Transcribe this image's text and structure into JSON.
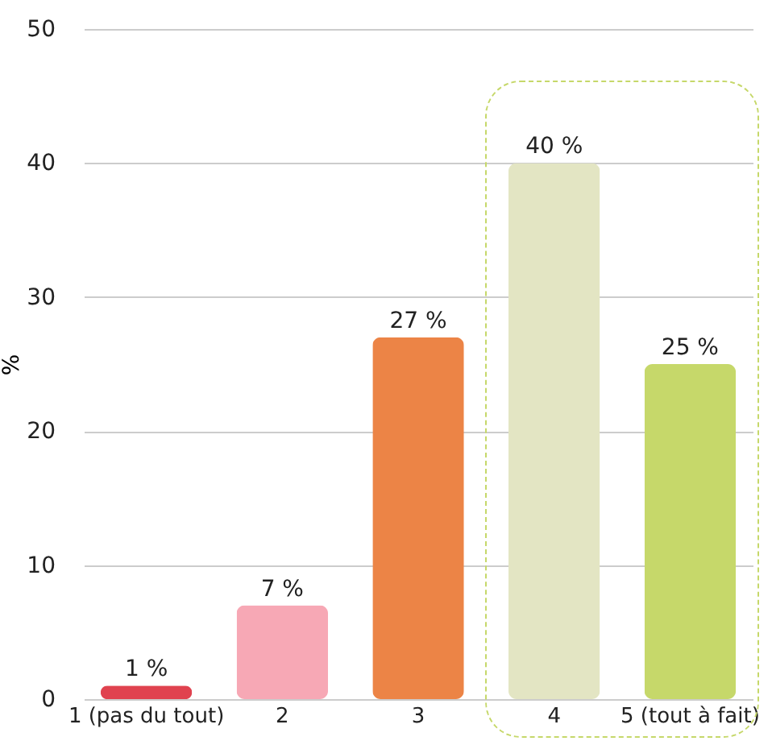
{
  "chart_data": {
    "type": "bar",
    "ylabel": "%",
    "categories": [
      "1 (pas du tout)",
      "2",
      "3",
      "4",
      "5 (tout à fait)"
    ],
    "values": [
      1,
      7,
      27,
      40,
      25
    ],
    "colors": [
      "#e0424f",
      "#f7a8b5",
      "#ec8446",
      "#e3e5c3",
      "#c6d86a"
    ],
    "value_labels": [
      "1 %",
      "7 %",
      "27 %",
      "40 %",
      "25 %"
    ],
    "ylim": [
      0,
      50
    ],
    "yticks": [
      0,
      10,
      20,
      30,
      40,
      50
    ],
    "grid": "y"
  }
}
